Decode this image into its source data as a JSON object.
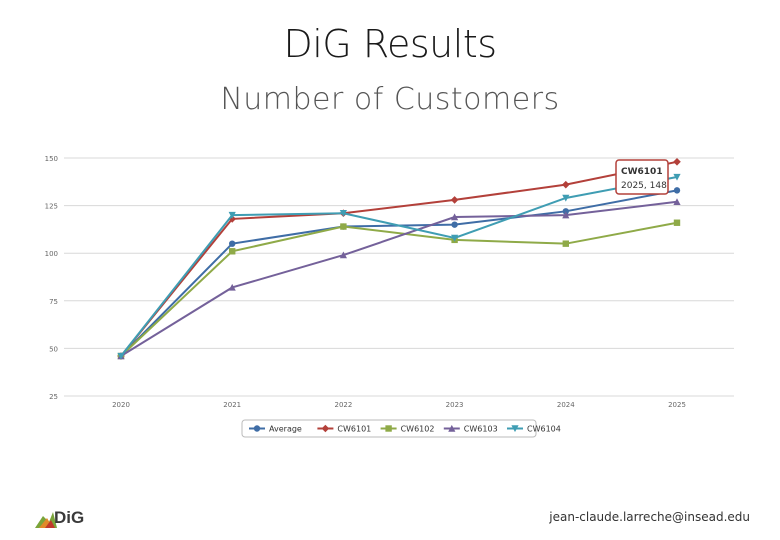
{
  "page": {
    "title": "DiG Results",
    "subtitle": "Number of Customers",
    "footer_email": "jean-claude.larreche@insead.edu",
    "logo_text": "DiG"
  },
  "tooltip": {
    "title": "CW6101",
    "value": "2025, 148"
  },
  "chart_data": {
    "type": "line",
    "title": "",
    "xlabel": "",
    "ylabel": "",
    "categories": [
      "2020",
      "2021",
      "2022",
      "2023",
      "2024",
      "2025"
    ],
    "ylim": [
      25,
      150
    ],
    "yticks": [
      25,
      50,
      75,
      100,
      125,
      150
    ],
    "grid": true,
    "legend": "bottom",
    "series": [
      {
        "name": "Average",
        "color": "#3f6da6",
        "marker": "circle",
        "values": [
          46,
          105,
          114,
          115,
          122,
          133
        ]
      },
      {
        "name": "CW6101",
        "color": "#b3403a",
        "marker": "diamond",
        "values": [
          46,
          118,
          121,
          128,
          136,
          148
        ]
      },
      {
        "name": "CW6102",
        "color": "#8faa48",
        "marker": "square",
        "values": [
          46,
          101,
          114,
          107,
          105,
          116
        ]
      },
      {
        "name": "CW6103",
        "color": "#74619a",
        "marker": "triangle",
        "values": [
          46,
          82,
          99,
          119,
          120,
          127
        ]
      },
      {
        "name": "CW6104",
        "color": "#3f9db3",
        "marker": "triangle-down",
        "values": [
          46,
          120,
          121,
          108,
          129,
          140
        ]
      }
    ]
  }
}
